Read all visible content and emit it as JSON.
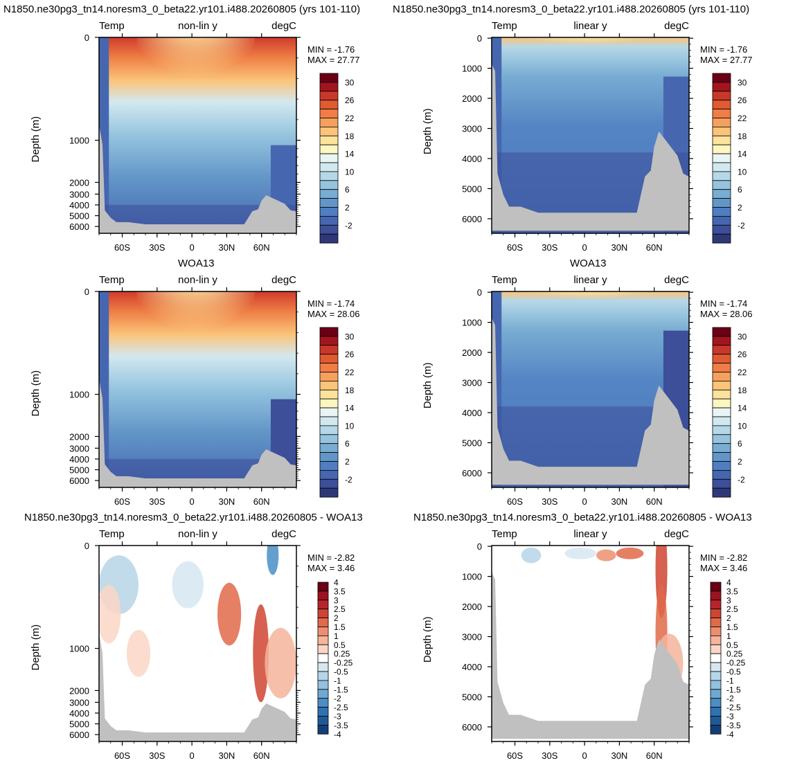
{
  "panels": [
    {
      "title": "N1850.ne30pg3_tn14.noresm3_0_beta22.yr101.i488.20260805 (yrs 101-110)",
      "left_label": "Temp",
      "center_label": "non-lin y",
      "right_label": "degC",
      "ylabel": "Depth (m)",
      "min_text": "MIN =  -1.76",
      "max_text": "MAX =  27.77"
    },
    {
      "title": "N1850.ne30pg3_tn14.noresm3_0_beta22.yr101.i488.20260805 (yrs 101-110)",
      "left_label": "Temp",
      "center_label": "linear y",
      "right_label": "degC",
      "ylabel": "Depth (m)",
      "min_text": "MIN =  -1.76",
      "max_text": "MAX =  27.77"
    },
    {
      "title": "WOA13",
      "left_label": "Temp",
      "center_label": "non-lin y",
      "right_label": "degC",
      "ylabel": "Depth (m)",
      "min_text": "MIN =  -1.74",
      "max_text": "MAX =  28.06"
    },
    {
      "title": "WOA13",
      "left_label": "Temp",
      "center_label": "linear y",
      "right_label": "degC",
      "ylabel": "Depth (m)",
      "min_text": "MIN =  -1.74",
      "max_text": "MAX =  28.06"
    },
    {
      "title": "N1850.ne30pg3_tn14.noresm3_0_beta22.yr101.i488.20260805 - WOA13",
      "left_label": "Temp",
      "center_label": "non-lin y",
      "right_label": "degC",
      "ylabel": "Depth (m)",
      "min_text": "MIN =  -2.82",
      "max_text": "MAX =   3.46"
    },
    {
      "title": "N1850.ne30pg3_tn14.noresm3_0_beta22.yr101.i488.20260805 - WOA13",
      "left_label": "Temp",
      "center_label": "linear y",
      "right_label": "degC",
      "ylabel": "Depth (m)",
      "min_text": "MIN =  -2.82",
      "max_text": "MAX =   3.46"
    }
  ],
  "x_ticks": [
    "60S",
    "30S",
    "0",
    "30N",
    "60N"
  ],
  "y_ticks_nonlin": [
    "0",
    "1000",
    "2000",
    "3000",
    "4000",
    "5000",
    "6000"
  ],
  "y_ticks_linear": [
    "0",
    "1000",
    "2000",
    "3000",
    "4000",
    "5000",
    "6000"
  ],
  "temp_colorbar_labels": [
    "30",
    "26",
    "22",
    "18",
    "14",
    "10",
    "6",
    "2",
    "-2"
  ],
  "diff_colorbar_labels": [
    "4",
    "3.5",
    "3",
    "2.5",
    "2",
    "1.5",
    "1",
    "0.5",
    "0.25",
    "-0.25",
    "-0.5",
    "-1",
    "-1.5",
    "-2",
    "-2.5",
    "-3",
    "-3.5",
    "-4"
  ],
  "colors": {
    "temp_scale": [
      "#6b0015",
      "#a1151f",
      "#c8382a",
      "#e05a32",
      "#ef7d45",
      "#f6a05e",
      "#fbc47a",
      "#fde29c",
      "#fdf6c0",
      "#e9f4f4",
      "#d2e8ef",
      "#b5d8e8",
      "#95c4de",
      "#78acd2",
      "#6295c8",
      "#507ec0",
      "#4667b0",
      "#3d4f99",
      "#2f3877"
    ],
    "diff_scale": [
      "#6b0015",
      "#9b1321",
      "#b8242b",
      "#cf4533",
      "#e06a4a",
      "#ec8f70",
      "#f5b49b",
      "#fbd6c5",
      "#ffffff",
      "#d6e7f1",
      "#b6d5e8",
      "#93c1df",
      "#6fa8d2",
      "#4a8ec4",
      "#2f72b2",
      "#1f5a98",
      "#123f77"
    ],
    "land": "#c0c0c0"
  },
  "chart_data": [
    {
      "type": "heatmap",
      "title": "N1850.ne30pg3_tn14.noresm3_0_beta22.yr101.i488.20260805 (yrs 101-110)",
      "ylabel": "Depth (m)",
      "y_scale": "non-linear",
      "xlim": [
        "80S",
        "90N"
      ],
      "ylim": [
        6000,
        0
      ],
      "variable": "Temp",
      "units": "degC",
      "min": -1.76,
      "max": 27.77
    },
    {
      "type": "heatmap",
      "title": "N1850.ne30pg3_tn14.noresm3_0_beta22.yr101.i488.20260805 (yrs 101-110)",
      "ylabel": "Depth (m)",
      "y_scale": "linear",
      "xlim": [
        "80S",
        "90N"
      ],
      "ylim": [
        6000,
        0
      ],
      "variable": "Temp",
      "units": "degC",
      "min": -1.76,
      "max": 27.77
    },
    {
      "type": "heatmap",
      "title": "WOA13",
      "ylabel": "Depth (m)",
      "y_scale": "non-linear",
      "variable": "Temp",
      "units": "degC",
      "min": -1.74,
      "max": 28.06
    },
    {
      "type": "heatmap",
      "title": "WOA13",
      "ylabel": "Depth (m)",
      "y_scale": "linear",
      "variable": "Temp",
      "units": "degC",
      "min": -1.74,
      "max": 28.06
    },
    {
      "type": "heatmap",
      "title": "N1850.ne30pg3_tn14.noresm3_0_beta22.yr101.i488.20260805 - WOA13",
      "ylabel": "Depth (m)",
      "y_scale": "non-linear",
      "variable": "Temp",
      "units": "degC",
      "min": -2.82,
      "max": 3.46
    },
    {
      "type": "heatmap",
      "title": "N1850.ne30pg3_tn14.noresm3_0_beta22.yr101.i488.20260805 - WOA13",
      "ylabel": "Depth (m)",
      "y_scale": "linear",
      "variable": "Temp",
      "units": "degC",
      "min": -2.82,
      "max": 3.46
    }
  ]
}
